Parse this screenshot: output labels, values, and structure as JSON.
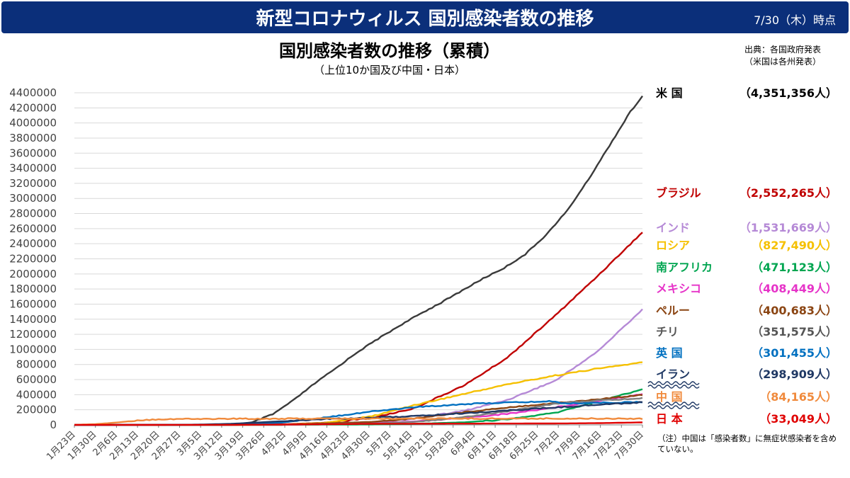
{
  "header": {
    "title": "新型コロナウィルス 国別感染者数の推移",
    "date": "7/30（木）時点",
    "bg_color": "#0b2f7a"
  },
  "source": {
    "line1": "出典：各国政府発表",
    "line2": "（米国は各州発表）"
  },
  "note": "（注）中国は「感染者数」に無症状感染者を含めていない。",
  "chart_data": {
    "type": "line",
    "title": "国別感染者数の推移（累積）",
    "subtitle": "（上位10か国及び中国・日本）",
    "ylim": [
      0,
      4400000
    ],
    "yticks": [
      0,
      200000,
      400000,
      600000,
      800000,
      1000000,
      1200000,
      1400000,
      1600000,
      1800000,
      2000000,
      2200000,
      2400000,
      2600000,
      2800000,
      3000000,
      3200000,
      3400000,
      3600000,
      3800000,
      4000000,
      4200000,
      4400000
    ],
    "xlim": [
      "2020-01-23",
      "2020-07-30"
    ],
    "xticks": [
      "1月23日",
      "1月30日",
      "2月6日",
      "2月13日",
      "2月20日",
      "2月27日",
      "3月5日",
      "3月12日",
      "3月19日",
      "3月26日",
      "4月2日",
      "4月9日",
      "4月16日",
      "4月23日",
      "4月30日",
      "5月7日",
      "5月14日",
      "5月21日",
      "5月28日",
      "6月4日",
      "6月11日",
      "6月18日",
      "6月25日",
      "7月2日",
      "7月9日",
      "7月16日",
      "7月23日",
      "7月30日"
    ],
    "grid": true,
    "legend": "right",
    "series": [
      {
        "name": "米 国",
        "value_label": "（4,351,356人）",
        "color": "#3a3a3a",
        "label_color": "#000000",
        "points": [
          [
            "2020-01-23",
            0
          ],
          [
            "2020-03-01",
            100
          ],
          [
            "2020-03-15",
            3500
          ],
          [
            "2020-03-22",
            33000
          ],
          [
            "2020-03-29",
            140000
          ],
          [
            "2020-04-05",
            330000
          ],
          [
            "2020-04-12",
            550000
          ],
          [
            "2020-04-19",
            750000
          ],
          [
            "2020-04-26",
            960000
          ],
          [
            "2020-05-03",
            1140000
          ],
          [
            "2020-05-10",
            1310000
          ],
          [
            "2020-05-17",
            1470000
          ],
          [
            "2020-05-24",
            1620000
          ],
          [
            "2020-05-31",
            1780000
          ],
          [
            "2020-06-07",
            1940000
          ],
          [
            "2020-06-14",
            2080000
          ],
          [
            "2020-06-21",
            2260000
          ],
          [
            "2020-06-28",
            2520000
          ],
          [
            "2020-07-05",
            2840000
          ],
          [
            "2020-07-12",
            3250000
          ],
          [
            "2020-07-19",
            3700000
          ],
          [
            "2020-07-26",
            4150000
          ],
          [
            "2020-07-30",
            4351356
          ]
        ]
      },
      {
        "name": "ブラジル",
        "value_label": "（2,552,265人）",
        "color": "#c00000",
        "label_color": "#c00000",
        "points": [
          [
            "2020-01-23",
            0
          ],
          [
            "2020-03-15",
            200
          ],
          [
            "2020-04-01",
            6800
          ],
          [
            "2020-04-15",
            28000
          ],
          [
            "2020-05-01",
            92000
          ],
          [
            "2020-05-15",
            220000
          ],
          [
            "2020-06-01",
            530000
          ],
          [
            "2020-06-15",
            890000
          ],
          [
            "2020-07-01",
            1450000
          ],
          [
            "2020-07-15",
            1970000
          ],
          [
            "2020-07-30",
            2552265
          ]
        ]
      },
      {
        "name": "インド",
        "value_label": "（1,531,669人）",
        "color": "#b589d6",
        "label_color": "#b589d6",
        "points": [
          [
            "2020-01-23",
            0
          ],
          [
            "2020-04-01",
            1900
          ],
          [
            "2020-04-15",
            12000
          ],
          [
            "2020-05-01",
            35000
          ],
          [
            "2020-05-15",
            82000
          ],
          [
            "2020-06-01",
            190000
          ],
          [
            "2020-06-15",
            330000
          ],
          [
            "2020-07-01",
            585000
          ],
          [
            "2020-07-15",
            970000
          ],
          [
            "2020-07-30",
            1531669
          ]
        ]
      },
      {
        "name": "ロシア",
        "value_label": "（827,490人）",
        "color": "#f5c000",
        "label_color": "#f5c000",
        "points": [
          [
            "2020-01-23",
            0
          ],
          [
            "2020-03-20",
            250
          ],
          [
            "2020-04-01",
            2800
          ],
          [
            "2020-04-15",
            25000
          ],
          [
            "2020-05-01",
            114000
          ],
          [
            "2020-05-15",
            262000
          ],
          [
            "2020-06-01",
            414000
          ],
          [
            "2020-06-15",
            537000
          ],
          [
            "2020-07-01",
            655000
          ],
          [
            "2020-07-15",
            745000
          ],
          [
            "2020-07-30",
            827490
          ]
        ]
      },
      {
        "name": "南アフリカ",
        "value_label": "（471,123人）",
        "color": "#00a550",
        "label_color": "#00a550",
        "points": [
          [
            "2020-01-23",
            0
          ],
          [
            "2020-04-01",
            1400
          ],
          [
            "2020-05-01",
            5900
          ],
          [
            "2020-05-15",
            13500
          ],
          [
            "2020-06-01",
            35000
          ],
          [
            "2020-06-15",
            73000
          ],
          [
            "2020-07-01",
            160000
          ],
          [
            "2020-07-15",
            312000
          ],
          [
            "2020-07-30",
            471123
          ]
        ]
      },
      {
        "name": "メキシコ",
        "value_label": "（408,449人）",
        "color": "#e633c8",
        "label_color": "#e633c8",
        "points": [
          [
            "2020-01-23",
            0
          ],
          [
            "2020-04-01",
            1400
          ],
          [
            "2020-05-01",
            20000
          ],
          [
            "2020-05-15",
            45000
          ],
          [
            "2020-06-01",
            93000
          ],
          [
            "2020-06-15",
            147000
          ],
          [
            "2020-07-01",
            232000
          ],
          [
            "2020-07-15",
            318000
          ],
          [
            "2020-07-30",
            408449
          ]
        ]
      },
      {
        "name": "ペルー",
        "value_label": "（400,683人）",
        "color": "#8b4513",
        "label_color": "#8b4513",
        "points": [
          [
            "2020-01-23",
            0
          ],
          [
            "2020-04-01",
            1300
          ],
          [
            "2020-05-01",
            40000
          ],
          [
            "2020-05-15",
            85000
          ],
          [
            "2020-06-01",
            170000
          ],
          [
            "2020-06-15",
            232000
          ],
          [
            "2020-07-01",
            288000
          ],
          [
            "2020-07-15",
            337000
          ],
          [
            "2020-07-30",
            400683
          ]
        ]
      },
      {
        "name": "チリ",
        "value_label": "（351,575人）",
        "color": "#7f7f7f",
        "label_color": "#555555",
        "points": [
          [
            "2020-01-23",
            0
          ],
          [
            "2020-04-01",
            3000
          ],
          [
            "2020-05-01",
            17000
          ],
          [
            "2020-05-15",
            40000
          ],
          [
            "2020-06-01",
            105000
          ],
          [
            "2020-06-15",
            180000
          ],
          [
            "2020-07-01",
            282000
          ],
          [
            "2020-07-15",
            323000
          ],
          [
            "2020-07-30",
            351575
          ]
        ]
      },
      {
        "name": "英 国",
        "value_label": "（301,455人）",
        "color": "#0070c0",
        "label_color": "#0070c0",
        "points": [
          [
            "2020-01-23",
            0
          ],
          [
            "2020-03-15",
            1400
          ],
          [
            "2020-04-01",
            30000
          ],
          [
            "2020-04-15",
            99000
          ],
          [
            "2020-05-01",
            178000
          ],
          [
            "2020-05-15",
            234000
          ],
          [
            "2020-06-01",
            276000
          ],
          [
            "2020-06-15",
            296000
          ],
          [
            "2020-07-01",
            313000
          ],
          [
            "2020-07-03",
            284000
          ],
          [
            "2020-07-15",
            292000
          ],
          [
            "2020-07-30",
            301455
          ]
        ]
      },
      {
        "name": "イラン",
        "value_label": "（298,909人）",
        "color": "#1f3864",
        "label_color": "#1f3864",
        "points": [
          [
            "2020-01-23",
            0
          ],
          [
            "2020-03-01",
            1500
          ],
          [
            "2020-03-15",
            14000
          ],
          [
            "2020-04-01",
            48000
          ],
          [
            "2020-04-15",
            77000
          ],
          [
            "2020-05-01",
            95000
          ],
          [
            "2020-05-15",
            116000
          ],
          [
            "2020-06-01",
            154000
          ],
          [
            "2020-06-15",
            190000
          ],
          [
            "2020-07-01",
            230000
          ],
          [
            "2020-07-15",
            267000
          ],
          [
            "2020-07-30",
            298909
          ]
        ]
      },
      {
        "name": "中 国",
        "value_label": "（84,165人）",
        "color": "#f08a3c",
        "label_color": "#f08a3c",
        "points": [
          [
            "2020-01-23",
            600
          ],
          [
            "2020-01-30",
            9700
          ],
          [
            "2020-02-06",
            31000
          ],
          [
            "2020-02-13",
            60000
          ],
          [
            "2020-02-20",
            75000
          ],
          [
            "2020-02-27",
            78800
          ],
          [
            "2020-03-15",
            81000
          ],
          [
            "2020-04-17",
            83400
          ],
          [
            "2020-07-30",
            84165
          ]
        ]
      },
      {
        "name": "日 本",
        "value_label": "（33,049人）",
        "color": "#e00000",
        "label_color": "#e00000",
        "points": [
          [
            "2020-01-23",
            0
          ],
          [
            "2020-03-15",
            800
          ],
          [
            "2020-04-15",
            8000
          ],
          [
            "2020-05-01",
            14300
          ],
          [
            "2020-06-01",
            17000
          ],
          [
            "2020-07-01",
            19000
          ],
          [
            "2020-07-15",
            23000
          ],
          [
            "2020-07-30",
            33049
          ]
        ]
      }
    ]
  }
}
